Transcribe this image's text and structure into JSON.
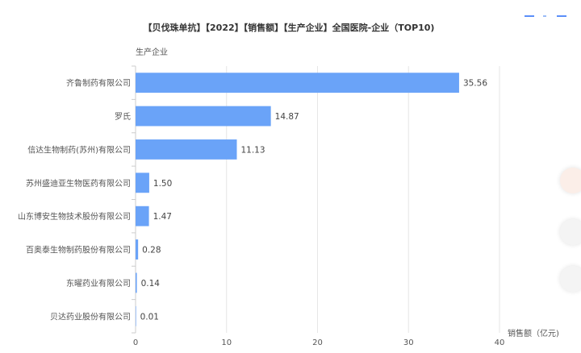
{
  "chart_data": {
    "type": "bar",
    "orientation": "horizontal",
    "title": "【贝伐珠单抗】【2022】【销售额】【生产企业】全国医院-企业（TOP10)",
    "ylabel": "生产企业",
    "xlabel": "销售额（亿元)",
    "categories": [
      "齐鲁制药有限公司",
      "罗氏",
      "信达生物制药(苏州)有限公司",
      "苏州盛迪亚生物医药有限公司",
      "山东博安生物技术股份有限公司",
      "百奥泰生物制药股份有限公司",
      "东曜药业有限公司",
      "贝达药业股份有限公司"
    ],
    "values": [
      35.56,
      14.87,
      11.13,
      1.5,
      1.47,
      0.28,
      0.14,
      0.01
    ],
    "value_labels": [
      "35.56",
      "14.87",
      "11.13",
      "1.50",
      "1.47",
      "0.28",
      "0.14",
      "0.01"
    ],
    "xlim": [
      0,
      40
    ],
    "xticks": [
      "0",
      "10",
      "20",
      "30",
      "40"
    ],
    "grid": true,
    "bar_color": "#6aa3f8"
  },
  "colors": {
    "bar": "#6aa3f8",
    "grid": "#e6e6e6",
    "axis": "#cccccc",
    "legend_accent": "#5b8ff9"
  }
}
